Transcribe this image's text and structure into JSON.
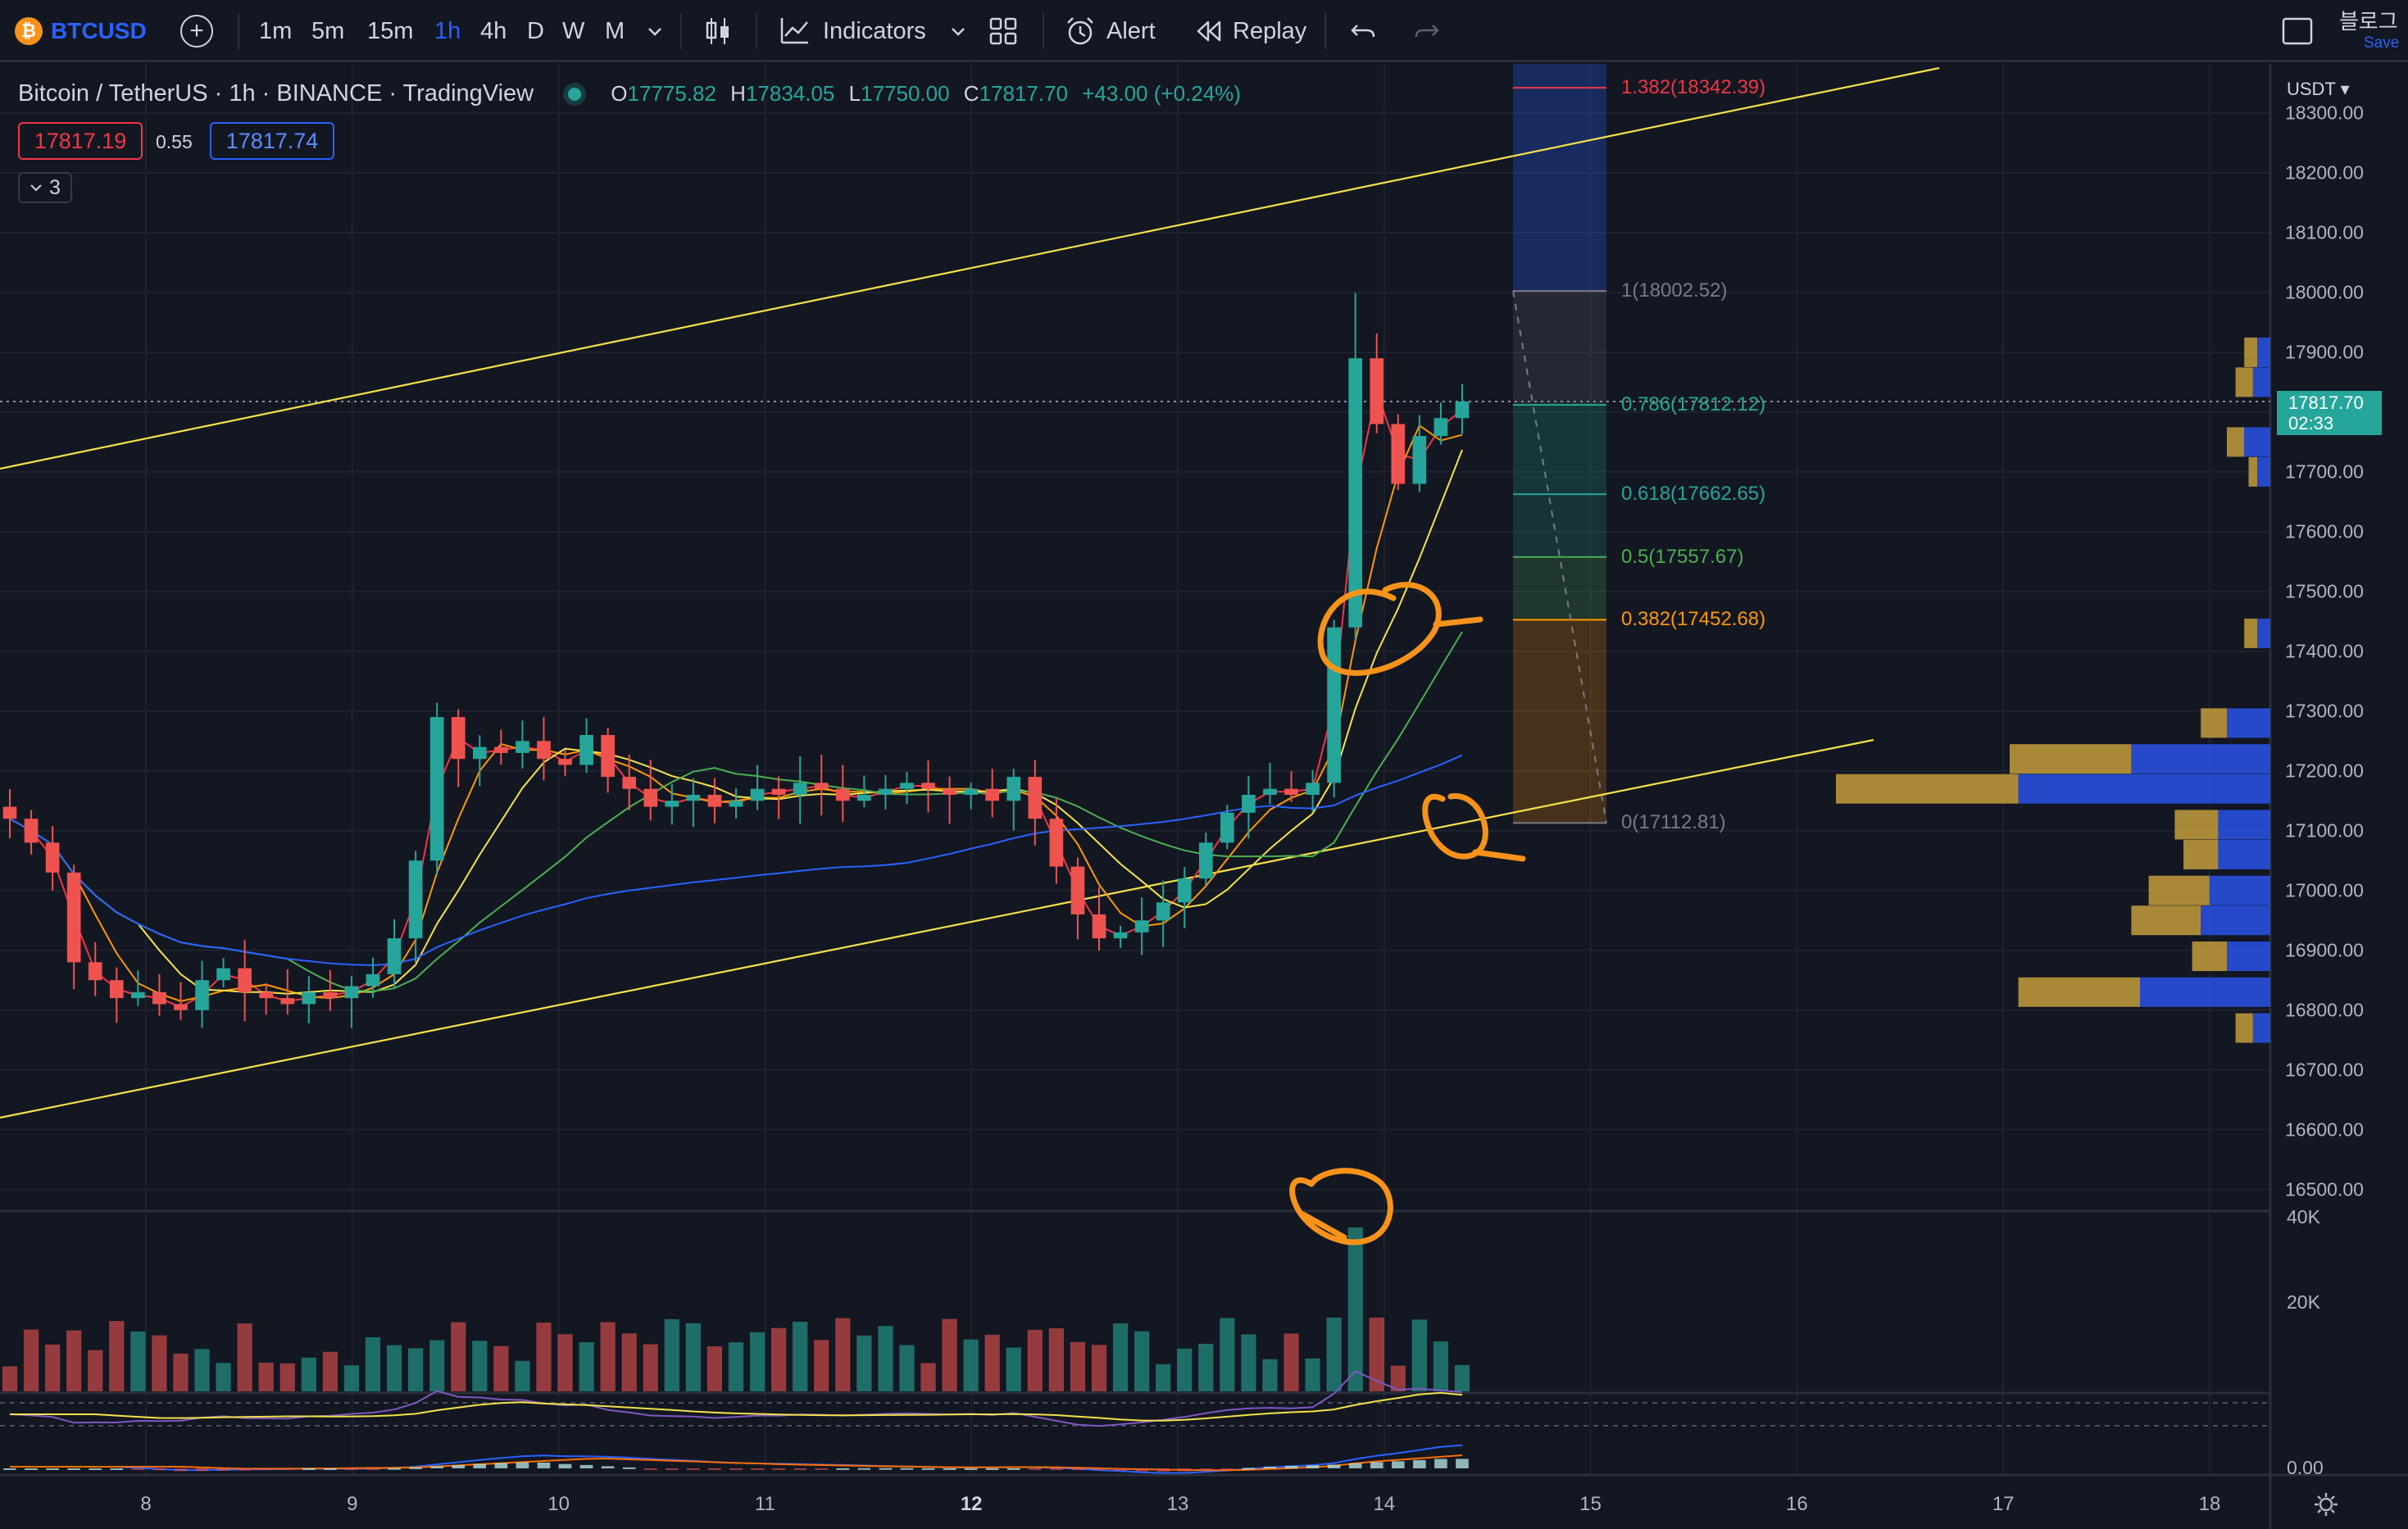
{
  "toolbar": {
    "symbol": "BTCUSD",
    "coin_glyph": "₿",
    "add_glyph": "+",
    "intervals": [
      "1m",
      "5m",
      "15m",
      "1h",
      "4h",
      "D",
      "W",
      "M"
    ],
    "active_interval": "1h",
    "indicators_label": "Indicators",
    "alert_label": "Alert",
    "replay_label": "Replay",
    "right_text_1": "블로그",
    "right_text_2": "Save"
  },
  "legend": {
    "title": "Bitcoin / TetherUS · 1h · BINANCE · TradingView",
    "open_label": "O",
    "open": "17775.82",
    "high_label": "H",
    "high": "17834.05",
    "low_label": "L",
    "low": "17750.00",
    "close_label": "C",
    "close": "17817.70",
    "change": "+43.00 (+0.24%)",
    "bid": "17817.19",
    "spread": "0.55",
    "ask": "17817.74",
    "collapse_count": "3"
  },
  "price_axis": {
    "currency": "USDT ▾",
    "ticks": [
      "18300.00",
      "18200.00",
      "18100.00",
      "18000.00",
      "17900.00",
      "17800.00",
      "17700.00",
      "17600.00",
      "17500.00",
      "17400.00",
      "17300.00",
      "17200.00",
      "17100.00",
      "17000.00",
      "16900.00",
      "16800.00",
      "16700.00",
      "16600.00",
      "16500.00"
    ],
    "last_price": "17817.70",
    "countdown": "02:33"
  },
  "volume_axis": {
    "ticks": [
      "40K",
      "20K"
    ]
  },
  "macd_axis": {
    "ticks": [
      "0.00"
    ]
  },
  "time_axis": {
    "ticks": [
      "8",
      "9",
      "10",
      "11",
      "12",
      "13",
      "14",
      "15",
      "16",
      "17",
      "18"
    ]
  },
  "fibonacci": [
    {
      "label": "1.382(18342.39)",
      "color": "#f23645"
    },
    {
      "label": "1(18002.52)",
      "color": "#787b86"
    },
    {
      "label": "0.786(17812.12)",
      "color": "#22ab94"
    },
    {
      "label": "0.618(17662.65)",
      "color": "#26a69a"
    },
    {
      "label": "0.5(17557.67)",
      "color": "#4caf50"
    },
    {
      "label": "0.382(17452.68)",
      "color": "#ff9800"
    },
    {
      "label": "0(17112.81)",
      "color": "#787b86"
    }
  ],
  "colors": {
    "background": "#131722",
    "up": "#26a69a",
    "down": "#ef5350",
    "accent": "#2962ff",
    "trendline": "#f5e24a",
    "annotation": "#f7931a"
  },
  "chart_data": {
    "type": "candlestick",
    "symbol": "BTCUSDT",
    "interval": "1h",
    "ylim": [
      16500,
      18350
    ],
    "x_ticks": [
      "8",
      "9",
      "10",
      "11",
      "12",
      "13",
      "14",
      "15",
      "16",
      "17",
      "18"
    ],
    "candles_close": [
      17120,
      17080,
      17030,
      16880,
      16850,
      16820,
      16830,
      16810,
      16800,
      16850,
      16870,
      16830,
      16820,
      16810,
      16830,
      16820,
      16840,
      16860,
      16920,
      17050,
      17290,
      17220,
      17240,
      17230,
      17250,
      17220,
      17210,
      17260,
      17190,
      17170,
      17140,
      17150,
      17160,
      17140,
      17150,
      17170,
      17160,
      17180,
      17170,
      17150,
      17160,
      17170,
      17180,
      17170,
      17160,
      17170,
      17150,
      17190,
      17120,
      17040,
      16960,
      16920,
      16930,
      16950,
      16980,
      17020,
      17080,
      17130,
      17160,
      17170,
      17160,
      17180,
      17440,
      17890,
      17780,
      17680,
      17760,
      17790,
      17817.7
    ],
    "moving_averages": [
      {
        "color": "#f23645",
        "type": "fast MA"
      },
      {
        "color": "#ff9800",
        "type": "MA"
      },
      {
        "color": "#f5e24a",
        "type": "MA"
      },
      {
        "color": "#4caf50",
        "type": "MA"
      },
      {
        "color": "#2962ff",
        "type": "slow MA"
      }
    ],
    "volume_ylim": [
      0,
      40000
    ]
  }
}
